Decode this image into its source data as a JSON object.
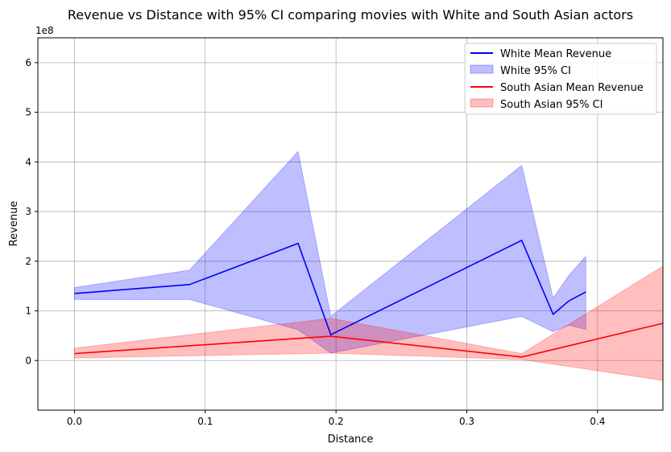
{
  "chart_data": {
    "type": "line",
    "title": "Revenue vs Distance with 95% CI comparing movies with White and South Asian actors",
    "xlabel": "Distance",
    "ylabel": "Revenue",
    "y_scale_note": "1e8",
    "xlim": [
      -0.028,
      0.45
    ],
    "ylim": [
      -1.0,
      6.5
    ],
    "x_ticks": [
      0.0,
      0.1,
      0.2,
      0.3,
      0.4
    ],
    "x_tick_labels": [
      "0.0",
      "0.1",
      "0.2",
      "0.3",
      "0.4"
    ],
    "y_ticks": [
      0,
      1,
      2,
      3,
      4,
      5,
      6
    ],
    "y_tick_labels": [
      "0",
      "1",
      "2",
      "3",
      "4",
      "5",
      "6"
    ],
    "grid": true,
    "legend_position": "top-right",
    "series": [
      {
        "name": "White Mean Revenue",
        "ci_name": "White 95% CI",
        "color": "#0000ff",
        "x": [
          0.0,
          0.088,
          0.171,
          0.196,
          0.342,
          0.366,
          0.378,
          0.391
        ],
        "y": [
          1.35,
          1.53,
          2.36,
          0.52,
          2.42,
          0.93,
          1.2,
          1.38
        ],
        "lower": [
          1.23,
          1.23,
          0.62,
          0.15,
          0.89,
          0.58,
          0.71,
          0.63
        ],
        "upper": [
          1.47,
          1.82,
          4.21,
          0.89,
          3.93,
          1.26,
          1.71,
          2.1
        ]
      },
      {
        "name": "South Asian Mean Revenue",
        "ci_name": "South Asian 95% CI",
        "color": "#ff0000",
        "x": [
          0.0,
          0.196,
          0.342,
          0.45
        ],
        "y": [
          0.14,
          0.49,
          0.07,
          0.75
        ],
        "lower": [
          0.05,
          0.15,
          0.02,
          -0.4
        ],
        "upper": [
          0.25,
          0.85,
          0.14,
          1.9
        ]
      }
    ]
  }
}
